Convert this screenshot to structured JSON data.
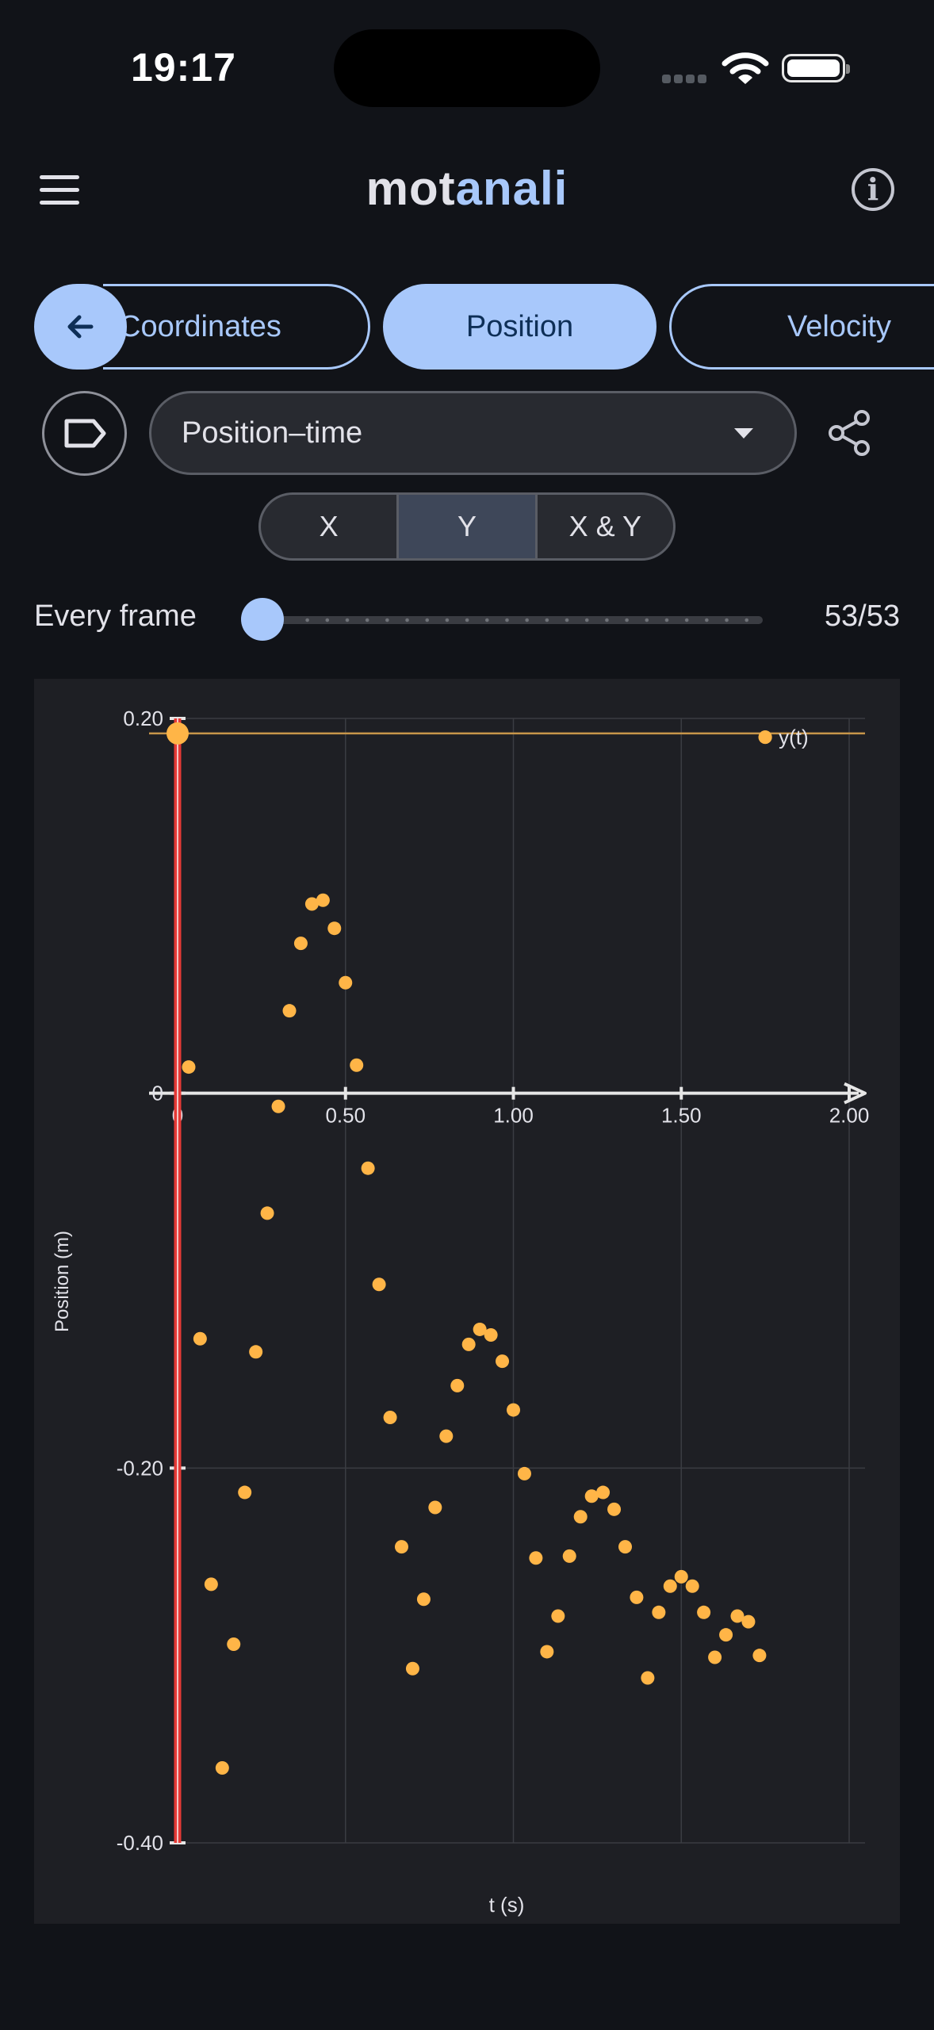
{
  "status_bar": {
    "time": "19:17"
  },
  "app_bar": {
    "title_part1": "mot",
    "title_part2": "anali"
  },
  "tabs": [
    {
      "label": "Coordinates"
    },
    {
      "label": "Position"
    },
    {
      "label": "Velocity"
    }
  ],
  "selected_tab": "Position",
  "graph_selector": {
    "value": "Position–time"
  },
  "axis_toggle": {
    "options": [
      "X",
      "Y",
      "X & Y"
    ],
    "selected": "Y"
  },
  "frame_slider": {
    "label": "Every frame",
    "count": "53/53",
    "value_fraction": 0.0
  },
  "colors": {
    "accent": "#a8c8fb",
    "series": "#ffb547",
    "cursor": "#e53935",
    "background": "#111318"
  },
  "icons": [
    "menu-icon",
    "info-icon",
    "arrow-back-icon",
    "label-icon",
    "dropdown-arrow-icon",
    "share-icon"
  ],
  "chart_data": {
    "type": "scatter",
    "xlabel": "t (s)",
    "ylabel": "Position (m)",
    "xlim": [
      0,
      2.0
    ],
    "ylim": [
      -0.4,
      0.2
    ],
    "x_ticks": [
      "0",
      "0.50",
      "1.00",
      "1.50",
      "2.00"
    ],
    "y_ticks": [
      "0.20",
      "0",
      "-0.20",
      "-0.40"
    ],
    "legend": "y(t)",
    "highlight_point": {
      "x": 0,
      "y": 0.192
    },
    "series": [
      {
        "name": "y(t)",
        "points": [
          [
            0,
            0.192
          ],
          [
            0.033,
            0.014
          ],
          [
            0.067,
            -0.131
          ],
          [
            0.1,
            -0.262
          ],
          [
            0.133,
            -0.36
          ],
          [
            0.167,
            -0.294
          ],
          [
            0.2,
            -0.213
          ],
          [
            0.233,
            -0.138
          ],
          [
            0.267,
            -0.064
          ],
          [
            0.3,
            -0.007
          ],
          [
            0.333,
            0.044
          ],
          [
            0.367,
            0.08
          ],
          [
            0.4,
            0.101
          ],
          [
            0.433,
            0.103
          ],
          [
            0.467,
            0.088
          ],
          [
            0.5,
            0.059
          ],
          [
            0.533,
            0.015
          ],
          [
            0.567,
            -0.04
          ],
          [
            0.6,
            -0.102
          ],
          [
            0.633,
            -0.173
          ],
          [
            0.667,
            -0.242
          ],
          [
            0.7,
            -0.307
          ],
          [
            0.733,
            -0.27
          ],
          [
            0.767,
            -0.221
          ],
          [
            0.8,
            -0.183
          ],
          [
            0.833,
            -0.156
          ],
          [
            0.867,
            -0.134
          ],
          [
            0.9,
            -0.126
          ],
          [
            0.933,
            -0.129
          ],
          [
            0.967,
            -0.143
          ],
          [
            1.0,
            -0.169
          ],
          [
            1.033,
            -0.203
          ],
          [
            1.067,
            -0.248
          ],
          [
            1.1,
            -0.298
          ],
          [
            1.133,
            -0.279
          ],
          [
            1.167,
            -0.247
          ],
          [
            1.2,
            -0.226
          ],
          [
            1.233,
            -0.215
          ],
          [
            1.267,
            -0.213
          ],
          [
            1.3,
            -0.222
          ],
          [
            1.333,
            -0.242
          ],
          [
            1.367,
            -0.269
          ],
          [
            1.4,
            -0.312
          ],
          [
            1.433,
            -0.277
          ],
          [
            1.467,
            -0.263
          ],
          [
            1.5,
            -0.258
          ],
          [
            1.533,
            -0.263
          ],
          [
            1.567,
            -0.277
          ],
          [
            1.6,
            -0.301
          ],
          [
            1.633,
            -0.289
          ],
          [
            1.667,
            -0.279
          ],
          [
            1.7,
            -0.282
          ],
          [
            1.733,
            -0.3
          ],
          [
            1.75,
            0.19
          ]
        ]
      }
    ]
  }
}
